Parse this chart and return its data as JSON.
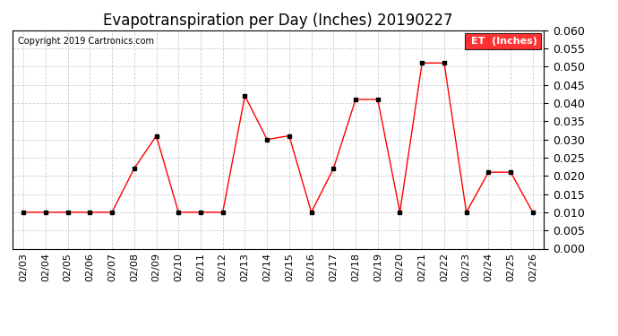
{
  "title": "Evapotranspiration per Day (Inches) 20190227",
  "copyright": "Copyright 2019 Cartronics.com",
  "dates": [
    "02/03",
    "02/04",
    "02/05",
    "02/06",
    "02/07",
    "02/08",
    "02/09",
    "02/10",
    "02/11",
    "02/12",
    "02/13",
    "02/14",
    "02/15",
    "02/16",
    "02/17",
    "02/18",
    "02/19",
    "02/20",
    "02/21",
    "02/22",
    "02/23",
    "02/24",
    "02/25",
    "02/26"
  ],
  "values": [
    0.01,
    0.01,
    0.01,
    0.01,
    0.01,
    0.022,
    0.031,
    0.01,
    0.01,
    0.01,
    0.042,
    0.03,
    0.031,
    0.01,
    0.022,
    0.041,
    0.041,
    0.01,
    0.051,
    0.051,
    0.01,
    0.021,
    0.021,
    0.01
  ],
  "ylim": [
    0.0,
    0.06
  ],
  "yticks": [
    0.0,
    0.005,
    0.01,
    0.015,
    0.02,
    0.025,
    0.03,
    0.035,
    0.04,
    0.045,
    0.05,
    0.055,
    0.06
  ],
  "line_color": "red",
  "marker_color": "black",
  "marker_size": 3,
  "background_color": "#ffffff",
  "grid_color": "#cccccc",
  "title_fontsize": 12,
  "copyright_fontsize": 7,
  "tick_fontsize": 8,
  "ytick_fontsize": 9,
  "legend_bg_color": "#ff0000",
  "legend_text_color": "#ffffff"
}
